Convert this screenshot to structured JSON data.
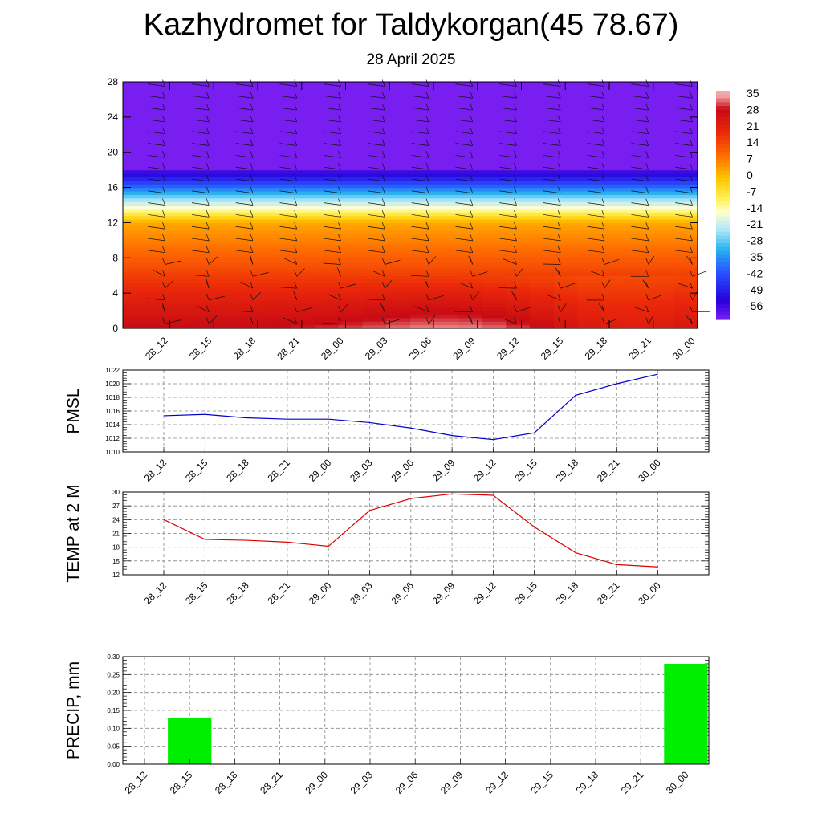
{
  "title": "Kazhydromet for Taldykorgan(45 78.67)",
  "subtitle": "28 April 2025",
  "chart_data": [
    {
      "type": "heatmap",
      "name": "temperature-cross-section",
      "x": [
        "28_12",
        "28_15",
        "28_18",
        "28_21",
        "29_00",
        "29_03",
        "29_06",
        "29_09",
        "29_12",
        "29_15",
        "29_18",
        "29_21",
        "30_00"
      ],
      "ylim": [
        0,
        28
      ],
      "yticks": [
        0,
        4,
        8,
        12,
        16,
        20,
        24,
        28
      ],
      "colorbar": {
        "labels": [
          35,
          28,
          21,
          14,
          7,
          0,
          -7,
          -14,
          -21,
          -28,
          -35,
          -42,
          -49,
          -56
        ],
        "range": [
          -60,
          38
        ]
      },
      "wind_barbs": true
    },
    {
      "type": "line",
      "ylabel": "PMSL",
      "x": [
        "28_12",
        "28_15",
        "28_18",
        "28_21",
        "29_00",
        "29_03",
        "29_06",
        "29_09",
        "29_12",
        "29_15",
        "29_18",
        "29_21",
        "30_00"
      ],
      "values": [
        1015.3,
        1015.5,
        1015.0,
        1014.8,
        1014.8,
        1014.3,
        1013.5,
        1012.4,
        1011.8,
        1012.8,
        1018.3,
        1020.0,
        1021.4
      ],
      "ylim": [
        1010,
        1022
      ],
      "yticks": [
        1010,
        1012,
        1014,
        1016,
        1018,
        1020,
        1022
      ],
      "color": "#0000cc",
      "grid": true
    },
    {
      "type": "line",
      "ylabel": "TEMP at 2 M",
      "x": [
        "28_12",
        "28_15",
        "28_18",
        "28_21",
        "29_00",
        "29_03",
        "29_06",
        "29_09",
        "29_12",
        "29_15",
        "29_18",
        "29_21",
        "30_00"
      ],
      "values": [
        24.0,
        19.7,
        19.5,
        19.1,
        18.2,
        26.0,
        28.6,
        29.6,
        29.3,
        22.4,
        16.8,
        14.2,
        13.7
      ],
      "ylim": [
        12,
        30
      ],
      "yticks": [
        12,
        15,
        18,
        21,
        24,
        27,
        30
      ],
      "color": "#dd0000",
      "grid": true
    },
    {
      "type": "bar",
      "ylabel": "PRECIP, mm",
      "x": [
        "28_12",
        "28_15",
        "28_18",
        "28_21",
        "29_00",
        "29_03",
        "29_06",
        "29_09",
        "29_12",
        "29_15",
        "29_18",
        "29_21",
        "30_00"
      ],
      "values": [
        0,
        0.13,
        0,
        0,
        0,
        0,
        0,
        0,
        0,
        0,
        0,
        0,
        0.28
      ],
      "ylim": [
        0,
        0.3
      ],
      "ytick_labels": [
        "0.00",
        "0.05",
        "0.10",
        "0.15",
        "0.20",
        "0.25",
        "0.30"
      ],
      "color": "#00ee00",
      "grid": true
    }
  ]
}
